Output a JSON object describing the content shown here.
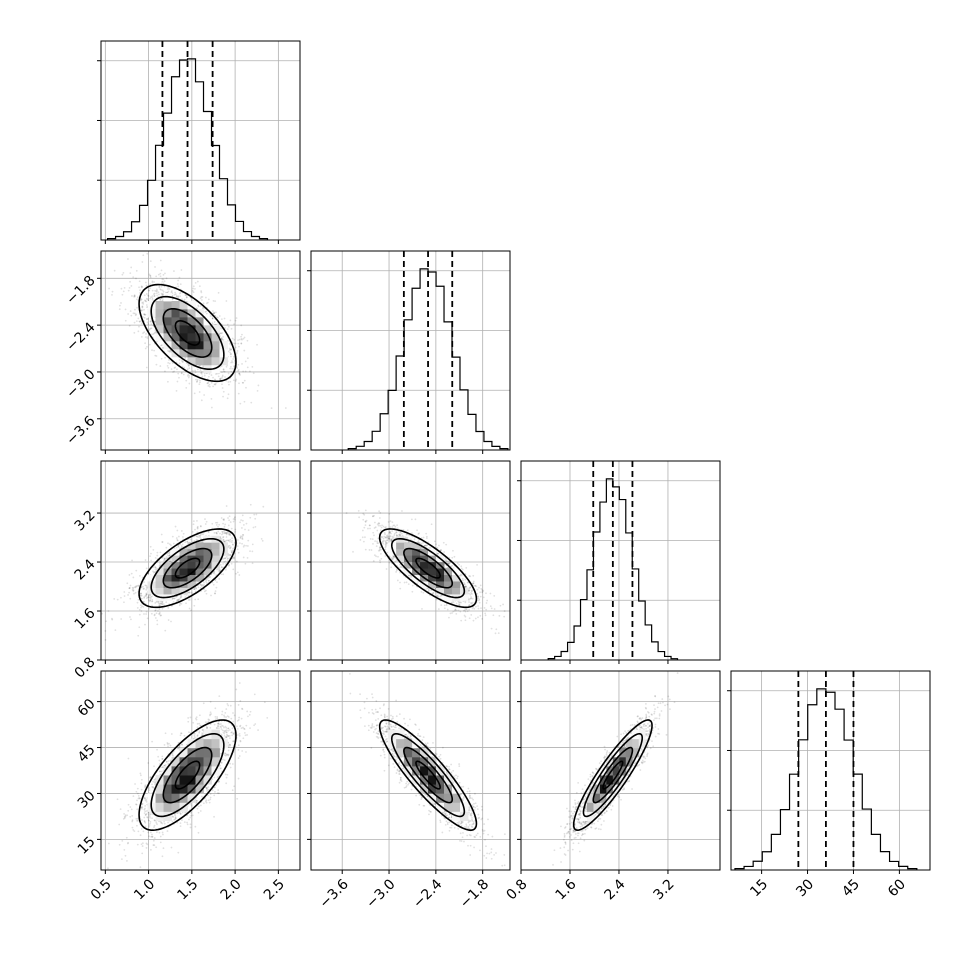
{
  "chart_data": {
    "type": "corner",
    "title": "",
    "parameters": [
      {
        "index": 0,
        "mean": 1.45,
        "std": 0.28,
        "range": [
          0.45,
          2.75
        ],
        "quantiles": [
          1.16,
          1.45,
          1.74
        ],
        "ticks": [
          0.5,
          1.0,
          1.5,
          2.0,
          2.5
        ],
        "tick_labels": [
          "0.5",
          "1.0",
          "1.5",
          "2.0",
          "2.5"
        ]
      },
      {
        "index": 1,
        "mean": -2.5,
        "std": 0.31,
        "range": [
          -4.0,
          -1.45
        ],
        "quantiles": [
          -2.81,
          -2.5,
          -2.19
        ],
        "ticks": [
          -3.6,
          -3.0,
          -2.4,
          -1.8
        ],
        "tick_labels": [
          "−3.6",
          "−3.0",
          "−2.4",
          "−1.8"
        ]
      },
      {
        "index": 2,
        "mean": 2.3,
        "std": 0.32,
        "range": [
          0.8,
          4.05
        ],
        "quantiles": [
          1.98,
          2.3,
          2.62
        ],
        "ticks": [
          0.8,
          1.6,
          2.4,
          3.2
        ],
        "tick_labels": [
          "0.8",
          "1.6",
          "2.4",
          "3.2"
        ]
      },
      {
        "index": 3,
        "mean": 36,
        "std": 9,
        "range": [
          5,
          70
        ],
        "quantiles": [
          27,
          36,
          45
        ],
        "ticks": [
          15,
          30,
          45,
          60
        ],
        "tick_labels": [
          "15",
          "30",
          "45",
          "60"
        ]
      }
    ],
    "correlations": [
      {
        "pair": [
          0,
          1
        ],
        "rho": -0.6
      },
      {
        "pair": [
          0,
          2
        ],
        "rho": 0.65
      },
      {
        "pair": [
          0,
          3
        ],
        "rho": 0.72
      },
      {
        "pair": [
          1,
          2
        ],
        "rho": -0.78
      },
      {
        "pair": [
          1,
          3
        ],
        "rho": -0.88
      },
      {
        "pair": [
          2,
          3
        ],
        "rho": 0.9
      }
    ],
    "histogram_bins": 20,
    "contour_levels_sigma": [
      0.5,
      1.0,
      1.5,
      2.0
    ],
    "grid": true,
    "colors": {
      "line": "#000000",
      "grid": "#b0b0b0",
      "samples": "#000000"
    }
  }
}
